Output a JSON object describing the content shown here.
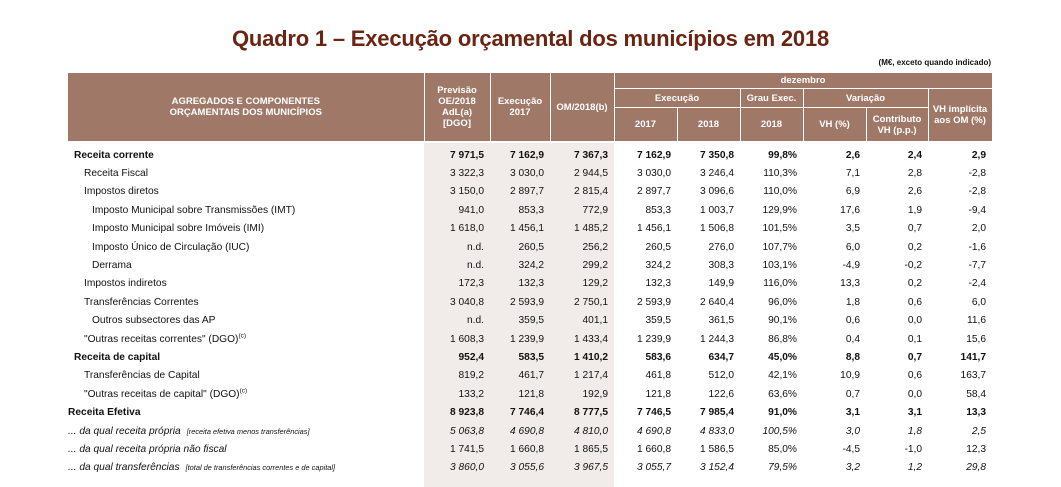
{
  "title": "Quadro 1 – Execução orçamental dos municípios em 2018",
  "units_note": "(M€, exceto quando indicado)",
  "colors": {
    "header_bg": "#a07868",
    "title": "#6b2412",
    "shade": "#f1ecea"
  },
  "header": {
    "label_col": [
      "AGREGADOS E COMPONENTES",
      "ORÇAMENTAIS DOS MUNICÍPIOS"
    ],
    "previsao": [
      "Previsão",
      "OE/2018",
      "AdL(a)",
      "[DGO]"
    ],
    "execucao_2017": [
      "Execução",
      "2017"
    ],
    "om2018": "OM/2018(b)",
    "dezembro": "dezembro",
    "execucao": "Execução",
    "grau_exec": "Grau Exec.",
    "variacao": "Variação",
    "vh_implicita": [
      "VH implícita",
      "aos OM (%)"
    ],
    "exec_2017": "2017",
    "exec_2018": "2018",
    "grau_2018": "2018",
    "vh_pct": "VH (%)",
    "contributo": [
      "Contributo",
      "VH (p.p.)"
    ]
  },
  "rows": [
    {
      "label": "Receita corrente",
      "note": "",
      "sup": "",
      "style": "bold",
      "indent": 0,
      "values": [
        "7 971,5",
        "7 162,9",
        "7 367,3",
        "7 162,9",
        "7 350,8",
        "99,8%",
        "2,6",
        "2,4",
        "2,9"
      ]
    },
    {
      "label": "Receita Fiscal",
      "note": "",
      "sup": "",
      "style": "",
      "indent": 1,
      "values": [
        "3 322,3",
        "3 030,0",
        "2 944,5",
        "3 030,0",
        "3 246,4",
        "110,3%",
        "7,1",
        "2,8",
        "-2,8"
      ]
    },
    {
      "label": "Impostos diretos",
      "note": "",
      "sup": "",
      "style": "",
      "indent": 1,
      "values": [
        "3 150,0",
        "2 897,7",
        "2 815,4",
        "2 897,7",
        "3 096,6",
        "110,0%",
        "6,9",
        "2,6",
        "-2,8"
      ]
    },
    {
      "label": "Imposto Municipal sobre Transmissões (IMT)",
      "note": "",
      "sup": "",
      "style": "",
      "indent": 2,
      "values": [
        "941,0",
        "853,3",
        "772,9",
        "853,3",
        "1 003,7",
        "129,9%",
        "17,6",
        "1,9",
        "-9,4"
      ]
    },
    {
      "label": "Imposto Municipal sobre Imóveis (IMI)",
      "note": "",
      "sup": "",
      "style": "",
      "indent": 2,
      "values": [
        "1 618,0",
        "1 456,1",
        "1 485,2",
        "1 456,1",
        "1 506,8",
        "101,5%",
        "3,5",
        "0,7",
        "2,0"
      ]
    },
    {
      "label": "Imposto Único de Circulação (IUC)",
      "note": "",
      "sup": "",
      "style": "",
      "indent": 2,
      "values": [
        "n.d.",
        "260,5",
        "256,2",
        "260,5",
        "276,0",
        "107,7%",
        "6,0",
        "0,2",
        "-1,6"
      ]
    },
    {
      "label": "Derrama",
      "note": "",
      "sup": "",
      "style": "",
      "indent": 2,
      "values": [
        "n.d.",
        "324,2",
        "299,2",
        "324,2",
        "308,3",
        "103,1%",
        "-4,9",
        "-0,2",
        "-7,7"
      ]
    },
    {
      "label": "Impostos indiretos",
      "note": "",
      "sup": "",
      "style": "",
      "indent": 1,
      "values": [
        "172,3",
        "132,3",
        "129,2",
        "132,3",
        "149,9",
        "116,0%",
        "13,3",
        "0,2",
        "-2,4"
      ]
    },
    {
      "label": "Transferências Correntes",
      "note": "",
      "sup": "",
      "style": "",
      "indent": 1,
      "values": [
        "3 040,8",
        "2 593,9",
        "2 750,1",
        "2 593,9",
        "2 640,4",
        "96,0%",
        "1,8",
        "0,6",
        "6,0"
      ]
    },
    {
      "label": "Outros subsectores das AP",
      "note": "",
      "sup": "",
      "style": "",
      "indent": 2,
      "values": [
        "n.d.",
        "359,5",
        "401,1",
        "359,5",
        "361,5",
        "90,1%",
        "0,6",
        "0,0",
        "11,6"
      ]
    },
    {
      "label": "\"Outras receitas correntes\" (DGO)",
      "note": "",
      "sup": "(c)",
      "style": "",
      "indent": 1,
      "values": [
        "1 608,3",
        "1 239,9",
        "1 433,4",
        "1 239,9",
        "1 244,3",
        "86,8%",
        "0,4",
        "0,1",
        "15,6"
      ]
    },
    {
      "label": "Receita de capital",
      "note": "",
      "sup": "",
      "style": "bold",
      "indent": 0,
      "values": [
        "952,4",
        "583,5",
        "1 410,2",
        "583,6",
        "634,7",
        "45,0%",
        "8,8",
        "0,7",
        "141,7"
      ]
    },
    {
      "label": "Transferências de Capital",
      "note": "",
      "sup": "",
      "style": "",
      "indent": 1,
      "values": [
        "819,2",
        "461,7",
        "1 217,4",
        "461,8",
        "512,0",
        "42,1%",
        "10,9",
        "0,6",
        "163,7"
      ]
    },
    {
      "label": "\"Outras receitas de capital\" (DGO)",
      "note": "",
      "sup": "(c)",
      "style": "",
      "indent": 1,
      "values": [
        "133,2",
        "121,8",
        "192,9",
        "121,8",
        "122,6",
        "63,6%",
        "0,7",
        "0,0",
        "58,4"
      ]
    },
    {
      "label": "Receita Efetiva",
      "note": "",
      "sup": "",
      "style": "bold",
      "indent": -1,
      "values": [
        "8 923,8",
        "7 746,4",
        "8 777,5",
        "7 746,5",
        "7 985,4",
        "91,0%",
        "3,1",
        "3,1",
        "13,3"
      ]
    },
    {
      "label": "... da qual receita própria",
      "note": "[receita efetiva menos transferências]",
      "sup": "",
      "style": "ital",
      "indent": -1,
      "values": [
        "5 063,8",
        "4 690,8",
        "4 810,0",
        "4 690,8",
        "4 833,0",
        "100,5%",
        "3,0",
        "1,8",
        "2,5"
      ]
    },
    {
      "label": "... da qual receita própria não fiscal",
      "note": "",
      "sup": "",
      "style": "ital-label",
      "indent": -1,
      "values": [
        "1 741,5",
        "1 660,8",
        "1 865,5",
        "1 660,8",
        "1 586,5",
        "85,0%",
        "-4,5",
        "-1,0",
        "12,3"
      ]
    },
    {
      "label": "... da qual transferências",
      "note": "[total de transferências  correntes e de capital]",
      "sup": "",
      "style": "ital",
      "indent": -1,
      "values": [
        "3 860,0",
        "3 055,6",
        "3 967,5",
        "3 055,7",
        "3 152,4",
        "79,5%",
        "3,2",
        "1,2",
        "29,8"
      ]
    }
  ]
}
